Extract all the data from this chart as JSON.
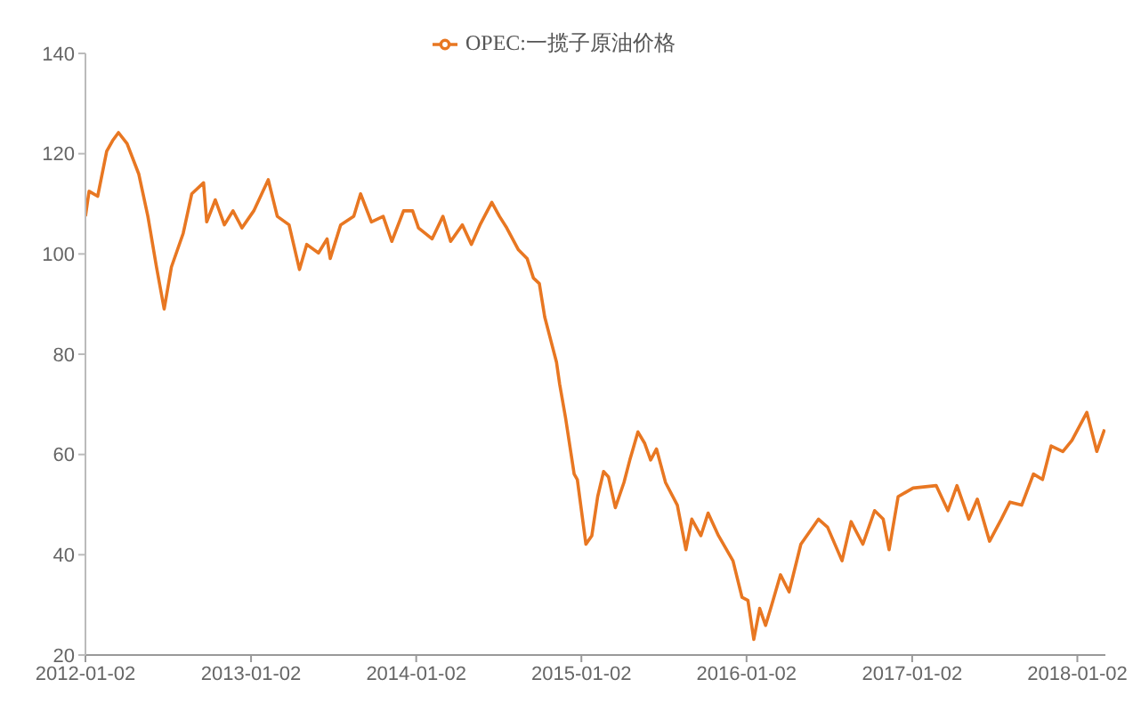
{
  "chart_data": {
    "type": "line",
    "x": [
      "2012-01-02",
      "2012-01-10",
      "2012-01-29",
      "2012-02-18",
      "2012-03-02",
      "2012-03-15",
      "2012-04-03",
      "2012-04-29",
      "2012-05-19",
      "2012-06-07",
      "2012-06-24",
      "2012-07-10",
      "2012-08-05",
      "2012-08-24",
      "2012-09-19",
      "2012-09-26",
      "2012-10-15",
      "2012-11-04",
      "2012-11-23",
      "2012-12-13",
      "2013-01-08",
      "2013-02-09",
      "2013-03-01",
      "2013-03-27",
      "2013-04-19",
      "2013-05-05",
      "2013-05-31",
      "2013-06-19",
      "2013-06-26",
      "2013-07-19",
      "2013-08-17",
      "2013-09-01",
      "2013-09-25",
      "2013-10-21",
      "2013-11-09",
      "2013-12-05",
      "2013-12-25",
      "2014-01-07",
      "2014-02-06",
      "2014-03-02",
      "2014-03-19",
      "2014-04-14",
      "2014-05-04",
      "2014-05-23",
      "2014-06-18",
      "2014-07-05",
      "2014-07-21",
      "2014-08-16",
      "2014-09-04",
      "2014-09-18",
      "2014-10-01",
      "2014-10-13",
      "2014-10-26",
      "2014-11-08",
      "2014-11-15",
      "2014-11-28",
      "2014-12-17",
      "2014-12-24",
      "2015-01-12",
      "2015-01-25",
      "2015-02-07",
      "2015-02-20",
      "2015-03-03",
      "2015-03-18",
      "2015-04-06",
      "2015-04-19",
      "2015-05-07",
      "2015-05-22",
      "2015-06-04",
      "2015-06-17",
      "2015-07-07",
      "2015-08-02",
      "2015-08-21",
      "2015-09-03",
      "2015-09-23",
      "2015-10-09",
      "2015-11-01",
      "2015-12-03",
      "2015-12-23",
      "2016-01-05",
      "2016-01-18",
      "2016-01-31",
      "2016-02-13",
      "2016-02-26",
      "2016-03-17",
      "2016-04-05",
      "2016-05-01",
      "2016-06-09",
      "2016-06-29",
      "2016-07-31",
      "2016-08-20",
      "2016-09-15",
      "2016-10-11",
      "2016-10-30",
      "2016-11-12",
      "2016-12-02",
      "2017-01-04",
      "2017-02-24",
      "2017-03-22",
      "2017-04-11",
      "2017-05-07",
      "2017-05-26",
      "2017-06-22",
      "2017-07-18",
      "2017-08-06",
      "2017-09-01",
      "2017-09-27",
      "2017-10-17",
      "2017-11-05",
      "2017-12-01",
      "2017-12-21",
      "2018-01-23",
      "2018-02-14",
      "2018-03-03"
    ],
    "series": [
      {
        "name": "OPEC:一揽子原油价格",
        "color": "#e87722",
        "values": [
          107.5,
          112.5,
          111.5,
          120.5,
          122.6,
          124.2,
          122,
          115.9,
          107.5,
          97.4,
          89,
          97.4,
          104.1,
          112,
          114.2,
          106.4,
          110.8,
          105.8,
          108.6,
          105.2,
          108.6,
          114.8,
          107.5,
          105.8,
          96.9,
          101.9,
          100.2,
          103,
          99.1,
          105.8,
          107.5,
          112,
          106.4,
          107.5,
          102.5,
          108.6,
          108.6,
          105.2,
          103,
          107.5,
          102.5,
          105.8,
          101.9,
          105.8,
          110.3,
          107.5,
          105.2,
          100.8,
          99.1,
          95.2,
          94.1,
          87.4,
          82.9,
          78.4,
          74,
          67.3,
          56.1,
          55,
          42.1,
          43.8,
          51.6,
          56.6,
          55.5,
          49.4,
          54.4,
          58.9,
          64.5,
          62.2,
          58.9,
          61.1,
          54.4,
          49.9,
          41,
          47.1,
          43.8,
          48.3,
          43.8,
          38.8,
          31.5,
          30.9,
          23.1,
          29.3,
          25.9,
          29.8,
          36,
          32.6,
          42.1,
          47.1,
          45.5,
          38.8,
          46.6,
          42.1,
          48.8,
          47.1,
          41,
          51.6,
          53.3,
          53.8,
          48.8,
          53.8,
          47.1,
          51.1,
          42.7,
          47.1,
          50.5,
          49.9,
          56.1,
          55,
          61.7,
          60.6,
          62.8,
          68.4,
          60.6,
          65
        ]
      }
    ],
    "xlim": [
      "2012-01-02",
      "2018-03-05"
    ],
    "xticks": [
      "2012-01-02",
      "2013-01-02",
      "2014-01-02",
      "2015-01-02",
      "2016-01-02",
      "2017-01-02",
      "2018-01-02"
    ],
    "ylim": [
      20,
      140
    ],
    "yticks": [
      20,
      40,
      60,
      80,
      100,
      120,
      140
    ],
    "grid": false,
    "legend": "top",
    "marker": "none",
    "line_style": "solid"
  }
}
